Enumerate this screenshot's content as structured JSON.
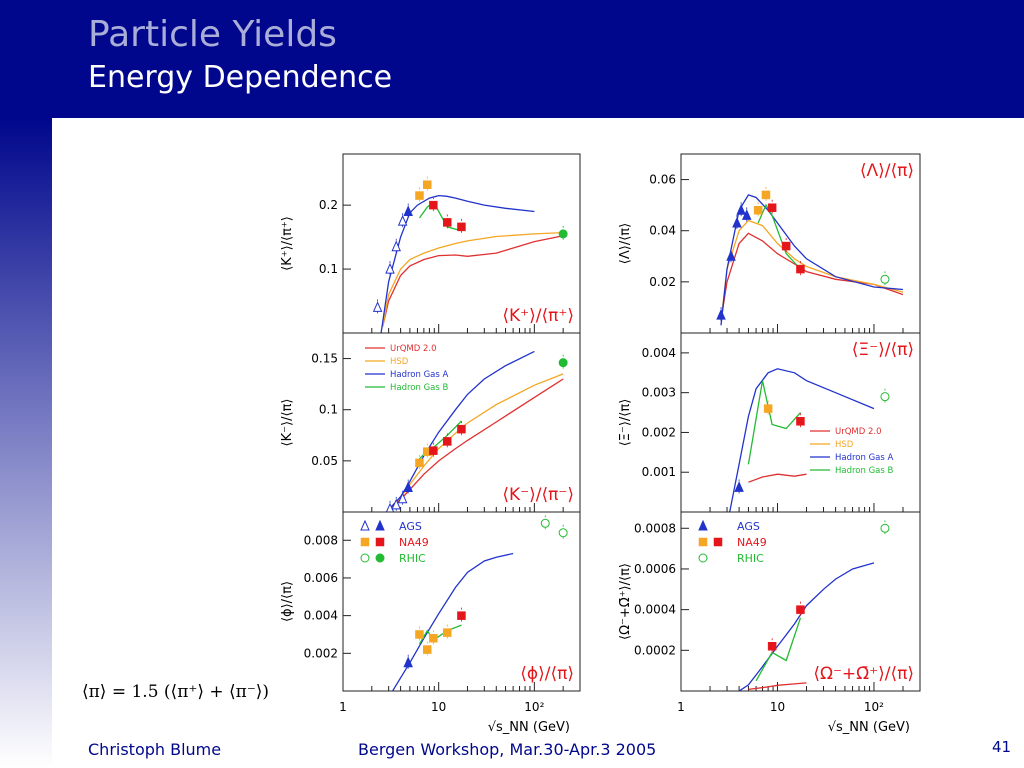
{
  "slide": {
    "title": "Particle Yields",
    "subtitle": "Energy Dependence",
    "footer_author": "Christoph Blume",
    "footer_event": "Bergen Workshop, Mar.30-Apr.3 2005",
    "page_number": "41",
    "formula": "⟨π⟩ = 1.5 (⟨π⁺⟩ + ⟨π⁻⟩)",
    "x_axis_label": "√s_NN (GeV)",
    "x_ticks": [
      "1",
      "10",
      "10²"
    ],
    "header_color": "#00078c"
  },
  "chart_data": [
    {
      "type": "scatter",
      "panel": "K+/pi+",
      "label": "⟨K⁺⟩/⟨π⁺⟩",
      "ylabel": "⟨K⁺⟩/⟨π⁺⟩",
      "xscale": "log",
      "xlim": [
        1,
        300
      ],
      "ylim": [
        0,
        0.28
      ],
      "yticks": [
        0.1,
        0.2
      ],
      "ytick_labels": [
        "0.1",
        "0.2"
      ],
      "series": [
        {
          "name": "AGS",
          "marker": "triangle-open",
          "color": "#2233cc",
          "x": [
            2.3,
            3.1,
            3.6,
            4.2
          ],
          "y": [
            0.04,
            0.1,
            0.135,
            0.175
          ]
        },
        {
          "name": "AGS",
          "marker": "triangle",
          "color": "#2233cc",
          "x": [
            4.8
          ],
          "y": [
            0.19
          ]
        },
        {
          "name": "NA49",
          "marker": "square",
          "color": "#f5a623",
          "x": [
            6.3,
            7.6
          ],
          "y": [
            0.215,
            0.232
          ]
        },
        {
          "name": "NA49",
          "marker": "square",
          "color": "#e4161b",
          "x": [
            8.8,
            12.3,
            17.3
          ],
          "y": [
            0.2,
            0.173,
            0.166
          ]
        },
        {
          "name": "RHIC",
          "marker": "circle",
          "color": "#22bb33",
          "x": [
            200
          ],
          "y": [
            0.155
          ]
        }
      ],
      "curves": [
        {
          "model": "UrQMD 2.0",
          "color": "#e03030",
          "x": [
            2.6,
            3,
            4,
            5,
            7,
            10,
            15,
            20,
            40,
            100,
            200
          ],
          "y": [
            0.01,
            0.05,
            0.09,
            0.105,
            0.115,
            0.121,
            0.122,
            0.12,
            0.125,
            0.143,
            0.152
          ]
        },
        {
          "model": "HSD",
          "color": "#f5a623",
          "x": [
            2.6,
            3,
            4,
            5,
            7,
            10,
            15,
            20,
            40,
            100,
            200
          ],
          "y": [
            0.01,
            0.06,
            0.1,
            0.115,
            0.125,
            0.133,
            0.14,
            0.144,
            0.151,
            0.155,
            0.157
          ]
        },
        {
          "model": "Hadron Gas A",
          "color": "#2233cc",
          "x": [
            2.5,
            3,
            4,
            5,
            6,
            8,
            10,
            12,
            15,
            20,
            30,
            50,
            100
          ],
          "y": [
            0.0,
            0.08,
            0.15,
            0.188,
            0.2,
            0.211,
            0.215,
            0.214,
            0.211,
            0.206,
            0.2,
            0.195,
            0.19
          ]
        },
        {
          "model": "Hadron Gas B",
          "color": "#22bb33",
          "x": [
            6.3,
            7.6,
            8.8,
            12.3,
            17.3
          ],
          "y": [
            0.18,
            0.197,
            0.205,
            0.166,
            0.16
          ]
        }
      ]
    },
    {
      "type": "scatter",
      "panel": "Lambda/pi",
      "label": "⟨Λ⟩/⟨π⟩",
      "ylabel": "⟨Λ⟩/⟨π⟩",
      "xscale": "log",
      "xlim": [
        1,
        300
      ],
      "ylim": [
        0,
        0.07
      ],
      "yticks": [
        0.02,
        0.04,
        0.06
      ],
      "ytick_labels": [
        "0.02",
        "0.04",
        "0.06"
      ],
      "series": [
        {
          "name": "AGS",
          "marker": "triangle",
          "color": "#2233cc",
          "x": [
            2.6,
            3.3,
            3.8,
            4.2,
            4.8
          ],
          "y": [
            0.007,
            0.03,
            0.043,
            0.048,
            0.046
          ]
        },
        {
          "name": "NA49",
          "marker": "square",
          "color": "#f5a623",
          "x": [
            6.3,
            7.6
          ],
          "y": [
            0.048,
            0.054
          ]
        },
        {
          "name": "NA49",
          "marker": "square",
          "color": "#e4161b",
          "x": [
            8.8,
            12.3,
            17.3
          ],
          "y": [
            0.049,
            0.034,
            0.025
          ]
        },
        {
          "name": "RHIC",
          "marker": "circle-open",
          "color": "#22bb33",
          "x": [
            130
          ],
          "y": [
            0.021
          ]
        }
      ],
      "curves": [
        {
          "model": "UrQMD 2.0",
          "color": "#e03030",
          "x": [
            2.6,
            3,
            4,
            5,
            7,
            10,
            15,
            20,
            40,
            100,
            200
          ],
          "y": [
            0.005,
            0.02,
            0.035,
            0.039,
            0.036,
            0.031,
            0.027,
            0.024,
            0.021,
            0.019,
            0.015
          ]
        },
        {
          "model": "HSD",
          "color": "#f5a623",
          "x": [
            2.6,
            3,
            4,
            5,
            7,
            10,
            15,
            20,
            40,
            100,
            200
          ],
          "y": [
            0.005,
            0.025,
            0.04,
            0.044,
            0.042,
            0.035,
            0.029,
            0.026,
            0.022,
            0.019,
            0.016
          ]
        },
        {
          "model": "Hadron Gas A",
          "color": "#2233cc",
          "x": [
            2.6,
            3,
            4,
            5,
            6,
            8,
            10,
            15,
            20,
            40,
            100,
            200
          ],
          "y": [
            0.003,
            0.025,
            0.048,
            0.054,
            0.053,
            0.048,
            0.043,
            0.034,
            0.029,
            0.022,
            0.018,
            0.017
          ]
        },
        {
          "model": "Hadron Gas B",
          "color": "#22bb33",
          "x": [
            6.3,
            7.6,
            8.8,
            12.3,
            17.3
          ],
          "y": [
            0.043,
            0.05,
            0.046,
            0.031,
            0.025
          ]
        }
      ]
    },
    {
      "type": "scatter",
      "panel": "K-/pi-",
      "label": "⟨K⁻⟩/⟨π⁻⟩",
      "ylabel": "⟨K⁻⟩/⟨π⟩",
      "xscale": "log",
      "xlim": [
        1,
        300
      ],
      "ylim": [
        0,
        0.175
      ],
      "yticks": [
        0.05,
        0.1,
        0.15
      ],
      "ytick_labels": [
        "0.05",
        "0.1",
        "0.15"
      ],
      "series": [
        {
          "name": "AGS",
          "marker": "triangle-open",
          "color": "#2233cc",
          "x": [
            3.1,
            3.6,
            4.2
          ],
          "y": [
            0.003,
            0.007,
            0.013
          ]
        },
        {
          "name": "AGS",
          "marker": "triangle",
          "color": "#2233cc",
          "x": [
            4.8
          ],
          "y": [
            0.024
          ]
        },
        {
          "name": "NA49",
          "marker": "square",
          "color": "#f5a623",
          "x": [
            6.3,
            7.6
          ],
          "y": [
            0.048,
            0.059
          ]
        },
        {
          "name": "NA49",
          "marker": "square",
          "color": "#e4161b",
          "x": [
            8.8,
            12.3,
            17.3
          ],
          "y": [
            0.06,
            0.069,
            0.081
          ]
        },
        {
          "name": "RHIC",
          "marker": "circle",
          "color": "#22bb33",
          "x": [
            200
          ],
          "y": [
            0.146
          ]
        }
      ],
      "curves": [
        {
          "model": "UrQMD 2.0",
          "color": "#e03030",
          "x": [
            3,
            4,
            5,
            7,
            10,
            15,
            20,
            40,
            100,
            200
          ],
          "y": [
            0.003,
            0.012,
            0.022,
            0.037,
            0.05,
            0.062,
            0.07,
            0.088,
            0.112,
            0.13
          ]
        },
        {
          "model": "HSD",
          "color": "#f5a623",
          "x": [
            3,
            4,
            5,
            7,
            10,
            15,
            20,
            40,
            100,
            200
          ],
          "y": [
            0.003,
            0.014,
            0.027,
            0.045,
            0.062,
            0.077,
            0.087,
            0.105,
            0.124,
            0.135
          ]
        },
        {
          "model": "Hadron Gas A",
          "color": "#2233cc",
          "x": [
            3,
            4,
            5,
            7,
            10,
            15,
            20,
            30,
            50,
            100
          ],
          "y": [
            0.002,
            0.015,
            0.03,
            0.055,
            0.078,
            0.1,
            0.115,
            0.13,
            0.143,
            0.157
          ]
        },
        {
          "model": "Hadron Gas B",
          "color": "#22bb33",
          "x": [
            6.3,
            7.6,
            8.8,
            12.3,
            17.3
          ],
          "y": [
            0.052,
            0.06,
            0.063,
            0.075,
            0.089
          ]
        }
      ],
      "legend": {
        "position": "top-left",
        "entries": [
          {
            "label": "UrQMD 2.0",
            "color": "#e03030"
          },
          {
            "label": "HSD",
            "color": "#f5a623"
          },
          {
            "label": "Hadron Gas A",
            "color": "#2233cc"
          },
          {
            "label": "Hadron Gas B",
            "color": "#22bb33"
          }
        ]
      }
    },
    {
      "type": "scatter",
      "panel": "Xi-/pi",
      "label": "⟨Ξ⁻⟩/⟨π⟩",
      "ylabel": "⟨Ξ⁻⟩/⟨π⟩",
      "xscale": "log",
      "xlim": [
        1,
        300
      ],
      "ylim": [
        0,
        0.0045
      ],
      "yticks": [
        0.001,
        0.002,
        0.003,
        0.004
      ],
      "ytick_labels": [
        "0.001",
        "0.002",
        "0.003",
        "0.004"
      ],
      "series": [
        {
          "name": "AGS",
          "marker": "triangle",
          "color": "#2233cc",
          "x": [
            4.0
          ],
          "y": [
            0.00062
          ]
        },
        {
          "name": "NA49",
          "marker": "square",
          "color": "#f5a623",
          "x": [
            8.0
          ],
          "y": [
            0.0026
          ]
        },
        {
          "name": "NA49",
          "marker": "square",
          "color": "#e4161b",
          "x": [
            17.3
          ],
          "y": [
            0.00228
          ]
        },
        {
          "name": "RHIC",
          "marker": "circle-open",
          "color": "#22bb33",
          "x": [
            130
          ],
          "y": [
            0.0029
          ]
        }
      ],
      "curves": [
        {
          "model": "UrQMD 2.0",
          "color": "#e03030",
          "x": [
            5,
            7,
            10,
            15,
            20
          ],
          "y": [
            0.00075,
            0.00088,
            0.00095,
            0.0009,
            0.00095
          ]
        },
        {
          "model": "Hadron Gas A",
          "color": "#2233cc",
          "x": [
            3.2,
            4,
            5,
            6,
            8,
            10,
            15,
            20,
            40,
            100
          ],
          "y": [
            0.0,
            0.0012,
            0.0024,
            0.0031,
            0.0035,
            0.0036,
            0.0035,
            0.0033,
            0.003,
            0.0026
          ]
        },
        {
          "model": "Hadron Gas B",
          "color": "#22bb33",
          "x": [
            5,
            7,
            8.8,
            12.3,
            17.3
          ],
          "y": [
            0.0012,
            0.0033,
            0.0022,
            0.0021,
            0.0025
          ]
        }
      ],
      "legend": {
        "position": "bottom-right",
        "entries": [
          {
            "label": "UrQMD 2.0",
            "color": "#e03030"
          },
          {
            "label": "HSD",
            "color": "#f5a623"
          },
          {
            "label": "Hadron Gas A",
            "color": "#2233cc"
          },
          {
            "label": "Hadron Gas B",
            "color": "#22bb33"
          }
        ]
      }
    },
    {
      "type": "scatter",
      "panel": "phi/pi",
      "label": "⟨ϕ⟩/⟨π⟩",
      "ylabel": "⟨ϕ⟩/⟨π⟩",
      "xscale": "log",
      "xlim": [
        1,
        300
      ],
      "ylim": [
        0,
        0.0095
      ],
      "yticks": [
        0.002,
        0.004,
        0.006,
        0.008
      ],
      "ytick_labels": [
        "0.002",
        "0.004",
        "0.006",
        "0.008"
      ],
      "series": [
        {
          "name": "AGS",
          "marker": "triangle",
          "color": "#2233cc",
          "x": [
            4.8
          ],
          "y": [
            0.0015
          ]
        },
        {
          "name": "NA49",
          "marker": "square",
          "color": "#f5a623",
          "x": [
            6.3,
            7.6,
            8.8,
            12.3
          ],
          "y": [
            0.003,
            0.0022,
            0.0028,
            0.0031
          ]
        },
        {
          "name": "NA49",
          "marker": "square",
          "color": "#e4161b",
          "x": [
            17.3
          ],
          "y": [
            0.004
          ]
        },
        {
          "name": "RHIC",
          "marker": "circle-open",
          "color": "#22bb33",
          "x": [
            130,
            200
          ],
          "y": [
            0.0089,
            0.0084
          ]
        }
      ],
      "curves": [
        {
          "model": "Hadron Gas A",
          "color": "#2233cc",
          "x": [
            3.3,
            4,
            5,
            7,
            10,
            15,
            20,
            30,
            40,
            60
          ],
          "y": [
            0.0,
            0.0007,
            0.0015,
            0.0028,
            0.0041,
            0.0055,
            0.0063,
            0.0069,
            0.0071,
            0.0073
          ]
        },
        {
          "model": "Hadron Gas B",
          "color": "#22bb33",
          "x": [
            6.3,
            7.6,
            8.8,
            12.3,
            17.3
          ],
          "y": [
            0.0025,
            0.0032,
            0.0027,
            0.0032,
            0.0035
          ]
        }
      ],
      "legend": {
        "position": "top-left",
        "entries": [
          {
            "label": "AGS",
            "markers": [
              "triangle-open",
              "triangle"
            ],
            "colors": [
              "#2233cc",
              "#2233cc"
            ]
          },
          {
            "label": "NA49",
            "markers": [
              "square",
              "square"
            ],
            "colors": [
              "#f5a623",
              "#e4161b"
            ]
          },
          {
            "label": "RHIC",
            "markers": [
              "circle-open",
              "circle"
            ],
            "colors": [
              "#22bb33",
              "#22bb33"
            ]
          }
        ]
      }
    },
    {
      "type": "scatter",
      "panel": "Omega/pi",
      "label": "⟨Ω⁻+Ω̄⁺⟩/⟨π⟩",
      "ylabel": "⟨Ω⁻+Ω̄⁺⟩/⟨π⟩",
      "xscale": "log",
      "xlim": [
        1,
        300
      ],
      "ylim": [
        0,
        0.00088
      ],
      "yticks": [
        0.0002,
        0.0004,
        0.0006,
        0.0008
      ],
      "ytick_labels": [
        "0.0002",
        "0.0004",
        "0.0006",
        "0.0008"
      ],
      "series": [
        {
          "name": "NA49",
          "marker": "square",
          "color": "#e4161b",
          "x": [
            8.8,
            17.3
          ],
          "y": [
            0.00022,
            0.0004
          ]
        },
        {
          "name": "RHIC",
          "marker": "circle-open",
          "color": "#22bb33",
          "x": [
            130
          ],
          "y": [
            0.0008
          ]
        }
      ],
      "curves": [
        {
          "model": "UrQMD 2.0",
          "color": "#e03030",
          "x": [
            5,
            8,
            10,
            15,
            20
          ],
          "y": [
            8e-06,
            2e-05,
            2.8e-05,
            3.5e-05,
            4e-05
          ]
        },
        {
          "model": "Hadron Gas A",
          "color": "#2233cc",
          "x": [
            4,
            5,
            7,
            10,
            15,
            20,
            30,
            40,
            60,
            100
          ],
          "y": [
            0.0,
            3e-05,
            0.00012,
            0.00022,
            0.00033,
            0.00042,
            0.0005,
            0.00055,
            0.0006,
            0.00063
          ]
        },
        {
          "model": "Hadron Gas B",
          "color": "#22bb33",
          "x": [
            6,
            8.8,
            12.3,
            17.3
          ],
          "y": [
            5e-05,
            0.00019,
            0.00015,
            0.00036
          ]
        }
      ],
      "legend": {
        "position": "top-left",
        "entries": [
          {
            "label": "AGS",
            "markers": [
              "triangle"
            ],
            "colors": [
              "#2233cc"
            ]
          },
          {
            "label": "NA49",
            "markers": [
              "square",
              "square"
            ],
            "colors": [
              "#f5a623",
              "#e4161b"
            ]
          },
          {
            "label": "RHIC",
            "markers": [
              "circle-open"
            ],
            "colors": [
              "#22bb33"
            ]
          }
        ]
      }
    }
  ]
}
